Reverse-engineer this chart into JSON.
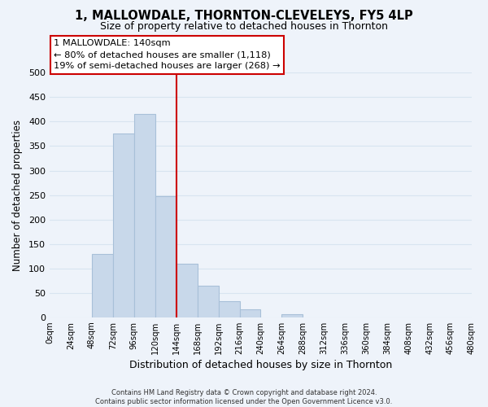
{
  "title": "1, MALLOWDALE, THORNTON-CLEVELEYS, FY5 4LP",
  "subtitle": "Size of property relative to detached houses in Thornton",
  "xlabel": "Distribution of detached houses by size in Thornton",
  "ylabel": "Number of detached properties",
  "bin_edges": [
    0,
    24,
    48,
    72,
    96,
    120,
    144,
    168,
    192,
    216,
    240,
    264,
    288,
    312,
    336,
    360,
    384,
    408,
    432,
    456,
    480
  ],
  "bar_heights": [
    0,
    0,
    130,
    375,
    415,
    247,
    110,
    65,
    33,
    16,
    0,
    6,
    0,
    0,
    0,
    0,
    0,
    0,
    0,
    0
  ],
  "bar_color": "#c8d8ea",
  "bar_edge_color": "#a8c0d8",
  "vline_x": 144,
  "vline_color": "#cc0000",
  "ylim": [
    0,
    500
  ],
  "yticks": [
    0,
    50,
    100,
    150,
    200,
    250,
    300,
    350,
    400,
    450,
    500
  ],
  "tick_labels": [
    "0sqm",
    "24sqm",
    "48sqm",
    "72sqm",
    "96sqm",
    "120sqm",
    "144sqm",
    "168sqm",
    "192sqm",
    "216sqm",
    "240sqm",
    "264sqm",
    "288sqm",
    "312sqm",
    "336sqm",
    "360sqm",
    "384sqm",
    "408sqm",
    "432sqm",
    "456sqm",
    "480sqm"
  ],
  "annotation_title": "1 MALLOWDALE: 140sqm",
  "annotation_line1": "← 80% of detached houses are smaller (1,118)",
  "annotation_line2": "19% of semi-detached houses are larger (268) →",
  "footer_line1": "Contains HM Land Registry data © Crown copyright and database right 2024.",
  "footer_line2": "Contains public sector information licensed under the Open Government Licence v3.0.",
  "grid_color": "#d8e4f0",
  "background_color": "#eef3fa"
}
